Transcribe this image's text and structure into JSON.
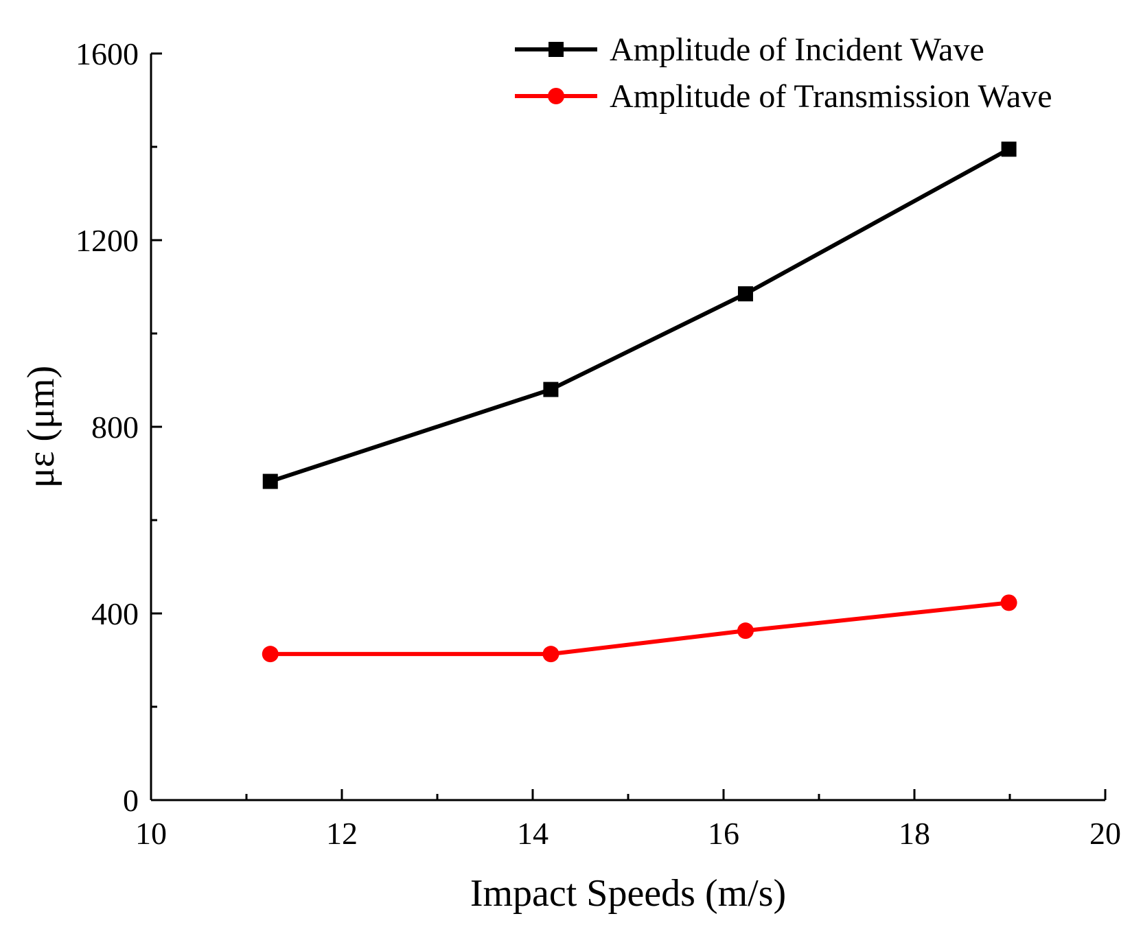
{
  "chart_data": {
    "type": "line",
    "title": "",
    "xlabel": "Impact Speeds (m/s)",
    "ylabel": "με (μm)",
    "xlim": [
      10,
      20
    ],
    "ylim": [
      0,
      1600
    ],
    "x_major_ticks": [
      10,
      12,
      14,
      16,
      18,
      20
    ],
    "x_minor_ticks": [
      11,
      13,
      15,
      17,
      19
    ],
    "y_major_ticks": [
      0,
      400,
      800,
      1200,
      1600
    ],
    "y_minor_ticks": [
      200,
      600,
      1000,
      1400
    ],
    "x_tick_labels": [
      "10",
      "12",
      "14",
      "16",
      "18",
      "20"
    ],
    "y_tick_labels": [
      "0",
      "400",
      "800",
      "1200",
      "1600"
    ],
    "grid": false,
    "legend_position": "top-right",
    "series": [
      {
        "name": "Amplitude of Incident Wave",
        "color": "#000000",
        "marker": "square",
        "x": [
          11.25,
          14.19,
          16.23,
          18.99
        ],
        "y": [
          683,
          880,
          1085,
          1395
        ]
      },
      {
        "name": "Amplitude of Transmission Wave",
        "color": "#ff0000",
        "marker": "circle",
        "x": [
          11.25,
          14.19,
          16.23,
          18.99
        ],
        "y": [
          313,
          313,
          363,
          423
        ]
      }
    ]
  }
}
